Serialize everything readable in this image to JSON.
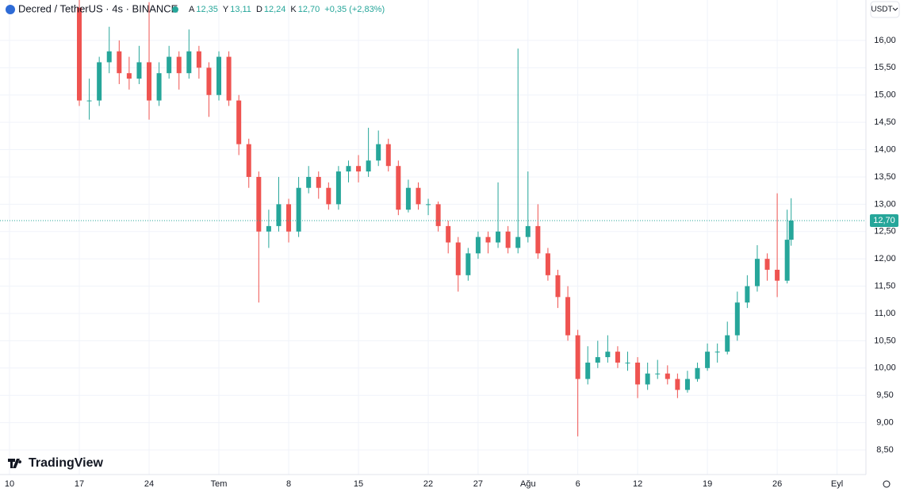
{
  "chart_data": {
    "type": "candlestick",
    "title": "Decred / TetherUS · 4s · BINANCE",
    "currency": "USDT",
    "brand": "TradingView",
    "ohlc_legend": [
      {
        "key": "A",
        "value": 12.35,
        "label": "12,35"
      },
      {
        "key": "Y",
        "value": 13.11,
        "label": "13,11"
      },
      {
        "key": "D",
        "value": 12.24,
        "label": "12,24"
      },
      {
        "key": "K",
        "value": 12.7,
        "label": "12,70"
      }
    ],
    "change_label": "+0,35 (+2,83%)",
    "last_price": {
      "value": 12.7,
      "label": "12,70"
    },
    "up_color": "#26a69a",
    "down_color": "#ef5350",
    "grid": true,
    "xlim": [
      -0.955,
      85.9
    ],
    "ylim": [
      8.05,
      16.74
    ],
    "xticks": [
      {
        "value": 0,
        "label": "10"
      },
      {
        "value": 7,
        "label": "17"
      },
      {
        "value": 14,
        "label": "24"
      },
      {
        "value": 21,
        "label": "Tem"
      },
      {
        "value": 28,
        "label": "8"
      },
      {
        "value": 35,
        "label": "15"
      },
      {
        "value": 42,
        "label": "22"
      },
      {
        "value": 47,
        "label": "27"
      },
      {
        "value": 52,
        "label": "Ağu"
      },
      {
        "value": 57,
        "label": "6"
      },
      {
        "value": 63,
        "label": "12"
      },
      {
        "value": 70,
        "label": "19"
      },
      {
        "value": 77,
        "label": "26"
      },
      {
        "value": 83,
        "label": "Eyl"
      }
    ],
    "yticks": [
      {
        "value": 8.5,
        "label": "8,50"
      },
      {
        "value": 9,
        "label": "9,00"
      },
      {
        "value": 9.5,
        "label": "9,50"
      },
      {
        "value": 10,
        "label": "10,00"
      },
      {
        "value": 10.5,
        "label": "10,50"
      },
      {
        "value": 11,
        "label": "11,00"
      },
      {
        "value": 11.5,
        "label": "11,50"
      },
      {
        "value": 12,
        "label": "12,00"
      },
      {
        "value": 12.5,
        "label": "12,50"
      },
      {
        "value": 13,
        "label": "13,00"
      },
      {
        "value": 13.5,
        "label": "13,50"
      },
      {
        "value": 14,
        "label": "14,00"
      },
      {
        "value": 14.5,
        "label": "14,50"
      },
      {
        "value": 15,
        "label": "15,00"
      },
      {
        "value": 15.5,
        "label": "15,50"
      },
      {
        "value": 16,
        "label": "16,00"
      }
    ],
    "x": [
      7,
      8,
      9,
      10,
      11,
      12,
      13,
      14,
      15,
      16,
      17,
      18,
      19,
      20,
      21,
      22,
      23,
      24,
      25,
      26,
      27,
      28,
      29,
      30,
      31,
      32,
      33,
      34,
      35,
      36,
      37,
      38,
      39,
      40,
      41,
      42,
      43,
      44,
      45,
      46,
      47,
      48,
      49,
      50,
      51,
      52,
      53,
      54,
      55,
      56,
      57,
      58,
      59,
      60,
      61,
      62,
      63,
      64,
      65,
      66,
      67,
      68,
      69,
      70,
      71,
      72,
      73,
      74,
      75,
      76,
      77,
      78,
      78.4
    ],
    "open": [
      16.6,
      14.9,
      14.9,
      15.6,
      15.8,
      15.4,
      15.3,
      15.6,
      14.9,
      15.4,
      15.7,
      15.4,
      15.8,
      15.5,
      15.0,
      15.7,
      14.9,
      14.1,
      13.5,
      12.5,
      12.6,
      13.0,
      12.5,
      13.3,
      13.5,
      13.3,
      13.0,
      13.6,
      13.7,
      13.6,
      13.8,
      14.1,
      13.7,
      12.9,
      13.3,
      13.0,
      13.0,
      12.6,
      12.3,
      11.7,
      12.1,
      12.4,
      12.3,
      12.5,
      12.2,
      12.4,
      12.6,
      12.1,
      11.7,
      11.3,
      10.6,
      9.8,
      10.1,
      10.2,
      10.3,
      10.1,
      10.1,
      9.7,
      9.9,
      9.9,
      9.8,
      9.6,
      9.8,
      10.0,
      10.3,
      10.3,
      10.6,
      11.2,
      11.5,
      12.0,
      11.8,
      11.6,
      12.35
    ],
    "high": [
      16.74,
      15.3,
      15.7,
      16.25,
      16.0,
      15.7,
      15.9,
      16.7,
      15.6,
      15.9,
      15.8,
      16.2,
      15.9,
      15.6,
      15.8,
      15.8,
      15.0,
      14.2,
      13.6,
      12.9,
      13.5,
      13.1,
      13.5,
      13.7,
      13.6,
      13.4,
      13.7,
      13.8,
      13.9,
      14.4,
      14.35,
      14.2,
      13.8,
      13.45,
      13.4,
      13.1,
      13.05,
      12.7,
      12.4,
      12.2,
      12.5,
      12.5,
      13.4,
      12.6,
      15.85,
      13.6,
      13.0,
      12.2,
      11.8,
      11.5,
      10.7,
      10.4,
      10.5,
      10.6,
      10.4,
      10.3,
      10.2,
      10.1,
      10.15,
      10.05,
      9.9,
      9.95,
      10.1,
      10.45,
      10.45,
      10.85,
      11.4,
      11.7,
      12.25,
      12.1,
      13.2,
      12.9,
      13.11
    ],
    "low": [
      14.8,
      14.55,
      14.8,
      15.4,
      15.2,
      15.1,
      15.2,
      14.55,
      14.8,
      15.3,
      15.1,
      15.3,
      15.3,
      14.6,
      14.9,
      14.8,
      13.9,
      13.3,
      11.2,
      12.2,
      12.5,
      12.3,
      12.4,
      13.2,
      13.1,
      12.9,
      12.9,
      13.4,
      13.4,
      13.5,
      13.7,
      13.6,
      12.8,
      12.85,
      12.9,
      12.8,
      12.5,
      12.1,
      11.4,
      11.6,
      12.0,
      12.1,
      12.2,
      12.1,
      12.1,
      12.3,
      12.0,
      11.6,
      11.1,
      10.5,
      8.75,
      9.7,
      10.0,
      10.1,
      10.0,
      9.95,
      9.45,
      9.6,
      9.8,
      9.7,
      9.45,
      9.55,
      9.75,
      9.95,
      10.1,
      10.25,
      10.5,
      11.1,
      11.4,
      11.6,
      11.3,
      11.55,
      12.24
    ],
    "close": [
      14.9,
      14.9,
      15.6,
      15.8,
      15.4,
      15.3,
      15.6,
      14.9,
      15.4,
      15.7,
      15.4,
      15.8,
      15.5,
      15.0,
      15.7,
      14.9,
      14.1,
      13.5,
      12.5,
      12.6,
      13.0,
      12.5,
      13.3,
      13.5,
      13.3,
      13.0,
      13.6,
      13.7,
      13.6,
      13.8,
      14.1,
      13.7,
      12.9,
      13.3,
      13.0,
      13.0,
      12.6,
      12.3,
      11.7,
      12.1,
      12.4,
      12.3,
      12.5,
      12.2,
      12.4,
      12.6,
      12.1,
      11.7,
      11.3,
      10.6,
      9.8,
      10.1,
      10.2,
      10.3,
      10.1,
      10.1,
      9.7,
      9.9,
      9.9,
      9.8,
      9.6,
      9.8,
      10.0,
      10.3,
      10.3,
      10.6,
      11.2,
      11.5,
      12.0,
      11.8,
      11.6,
      12.35,
      12.7
    ]
  }
}
